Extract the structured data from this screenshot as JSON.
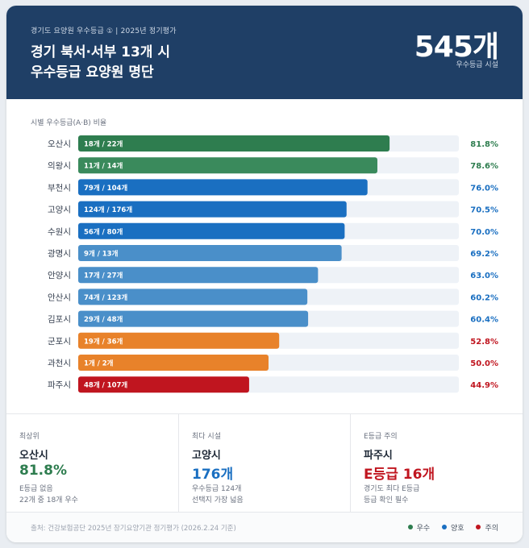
{
  "header": {
    "kicker": "경기도 요양원 우수등급 ① | 2025년 정기평가",
    "title_line1": "경기 북서·서부 13개 시",
    "title_line2": "우수등급 요양원 명단",
    "big_number": "545개",
    "big_number_label": "우수등급 시설"
  },
  "chart_section_label": "시별 우수등급(A·B) 비율",
  "colors": {
    "excellent": "#2e7d4f",
    "good": "#1a6fc1",
    "good_light": "#4a8fc9",
    "caution_orange": "#e8822a",
    "caution_red": "#c0151f",
    "track": "#eef2f7"
  },
  "chart_data": {
    "type": "bar",
    "title": "",
    "orientation": "horizontal",
    "ylim": [
      0,
      100
    ],
    "categories": [
      "오산시",
      "의왕시",
      "부천시",
      "고양시",
      "수원시",
      "광명시",
      "안양시",
      "안산시",
      "김포시",
      "군포시",
      "과천시",
      "파주시"
    ],
    "values": [
      81.8,
      78.6,
      76.0,
      70.5,
      70.0,
      69.2,
      63.0,
      60.2,
      60.4,
      52.8,
      50.0,
      44.9
    ],
    "value_labels": [
      "81.8%",
      "78.6%",
      "76.0%",
      "70.5%",
      "70.0%",
      "69.2%",
      "63.0%",
      "60.2%",
      "60.4%",
      "52.8%",
      "50.0%",
      "44.9%"
    ],
    "bar_labels": [
      "18개 / 22개",
      "11개 / 14개",
      "79개 / 104개",
      "124개 / 176개",
      "56개 / 80개",
      "9개 / 13개",
      "17개 / 27개",
      "74개 / 123개",
      "29개 / 48개",
      "19개 / 36개",
      "1개 / 2개",
      "48개 / 107개"
    ],
    "bar_colors": [
      "#2e7d4f",
      "#3a8a5c",
      "#1a6fc1",
      "#1a6fc1",
      "#1a6fc1",
      "#4a8fc9",
      "#4a8fc9",
      "#4a8fc9",
      "#4a8fc9",
      "#e8822a",
      "#e8822a",
      "#c0151f"
    ],
    "value_colors": [
      "#2e7d4f",
      "#2e7d4f",
      "#1a6fc1",
      "#1a6fc1",
      "#1a6fc1",
      "#1a6fc1",
      "#1a6fc1",
      "#1a6fc1",
      "#1a6fc1",
      "#c0151f",
      "#c0151f",
      "#c0151f"
    ]
  },
  "stats": [
    {
      "label": "최상위",
      "name": "오산시",
      "value": "81.8%",
      "value_color": "#2e7d4f",
      "note1": "E등급 없음",
      "note2": "22개 중 18개 우수"
    },
    {
      "label": "최다 시설",
      "name": "고양시",
      "value": "176개",
      "value_color": "#1a6fc1",
      "note1": "우수등급 124개",
      "note2": "선택지 가장 넓음"
    },
    {
      "label": "E등급 주의",
      "name": "파주시",
      "value": "E등급 16개",
      "value_color": "#c0151f",
      "note1": "경기도 최다 E등급",
      "note2": "등급 확인 필수"
    }
  ],
  "footer": {
    "source": "출처: 건강보험공단 2025년 장기요양기관 정기평가 (2026.2.24 기준)",
    "legend": [
      {
        "label": "우수",
        "color": "#2e7d4f"
      },
      {
        "label": "양호",
        "color": "#1a6fc1"
      },
      {
        "label": "주의",
        "color": "#c0151f"
      }
    ]
  }
}
